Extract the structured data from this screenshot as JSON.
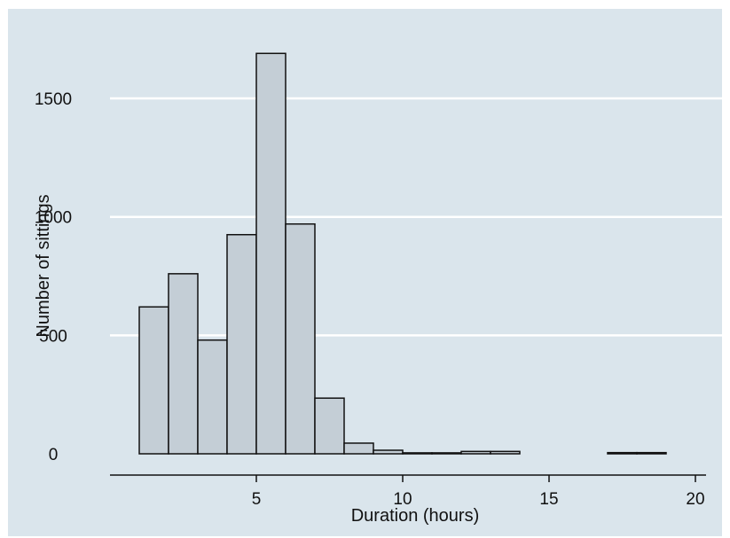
{
  "chart_data": {
    "type": "bar",
    "xlabel": "Duration (hours)",
    "ylabel": "Number of sittings",
    "xlim": [
      1,
      20
    ],
    "ylim": [
      0,
      1700
    ],
    "bin_width": 1,
    "bins": [
      {
        "x0": 1,
        "x1": 2,
        "value": 620
      },
      {
        "x0": 2,
        "x1": 3,
        "value": 760
      },
      {
        "x0": 3,
        "x1": 4,
        "value": 480
      },
      {
        "x0": 4,
        "x1": 5,
        "value": 925
      },
      {
        "x0": 5,
        "x1": 6,
        "value": 1690
      },
      {
        "x0": 6,
        "x1": 7,
        "value": 970
      },
      {
        "x0": 7,
        "x1": 8,
        "value": 235
      },
      {
        "x0": 8,
        "x1": 9,
        "value": 45
      },
      {
        "x0": 9,
        "x1": 10,
        "value": 15
      },
      {
        "x0": 10,
        "x1": 11,
        "value": 4
      },
      {
        "x0": 11,
        "x1": 12,
        "value": 4
      },
      {
        "x0": 12,
        "x1": 13,
        "value": 10
      },
      {
        "x0": 13,
        "x1": 14,
        "value": 10
      },
      {
        "x0": 14,
        "x1": 15,
        "value": 0
      },
      {
        "x0": 15,
        "x1": 16,
        "value": 0
      },
      {
        "x0": 16,
        "x1": 17,
        "value": 0
      },
      {
        "x0": 17,
        "x1": 18,
        "value": 5
      },
      {
        "x0": 18,
        "x1": 19,
        "value": 5
      },
      {
        "x0": 19,
        "x1": 20,
        "value": 0
      }
    ],
    "x_ticks": [
      5,
      10,
      15,
      20
    ],
    "x_tick_labels": [
      "5",
      "10",
      "15",
      "20"
    ],
    "y_ticks": [
      0,
      500,
      1000,
      1500
    ],
    "y_tick_labels": [
      "0",
      "500",
      "1000",
      "1500"
    ],
    "grid": true,
    "colors": {
      "background": "#dae5ec",
      "outer": "#ffffff",
      "bar_fill": "#c4ced6",
      "bar_stroke": "#111111",
      "gridline": "#ffffff"
    }
  }
}
